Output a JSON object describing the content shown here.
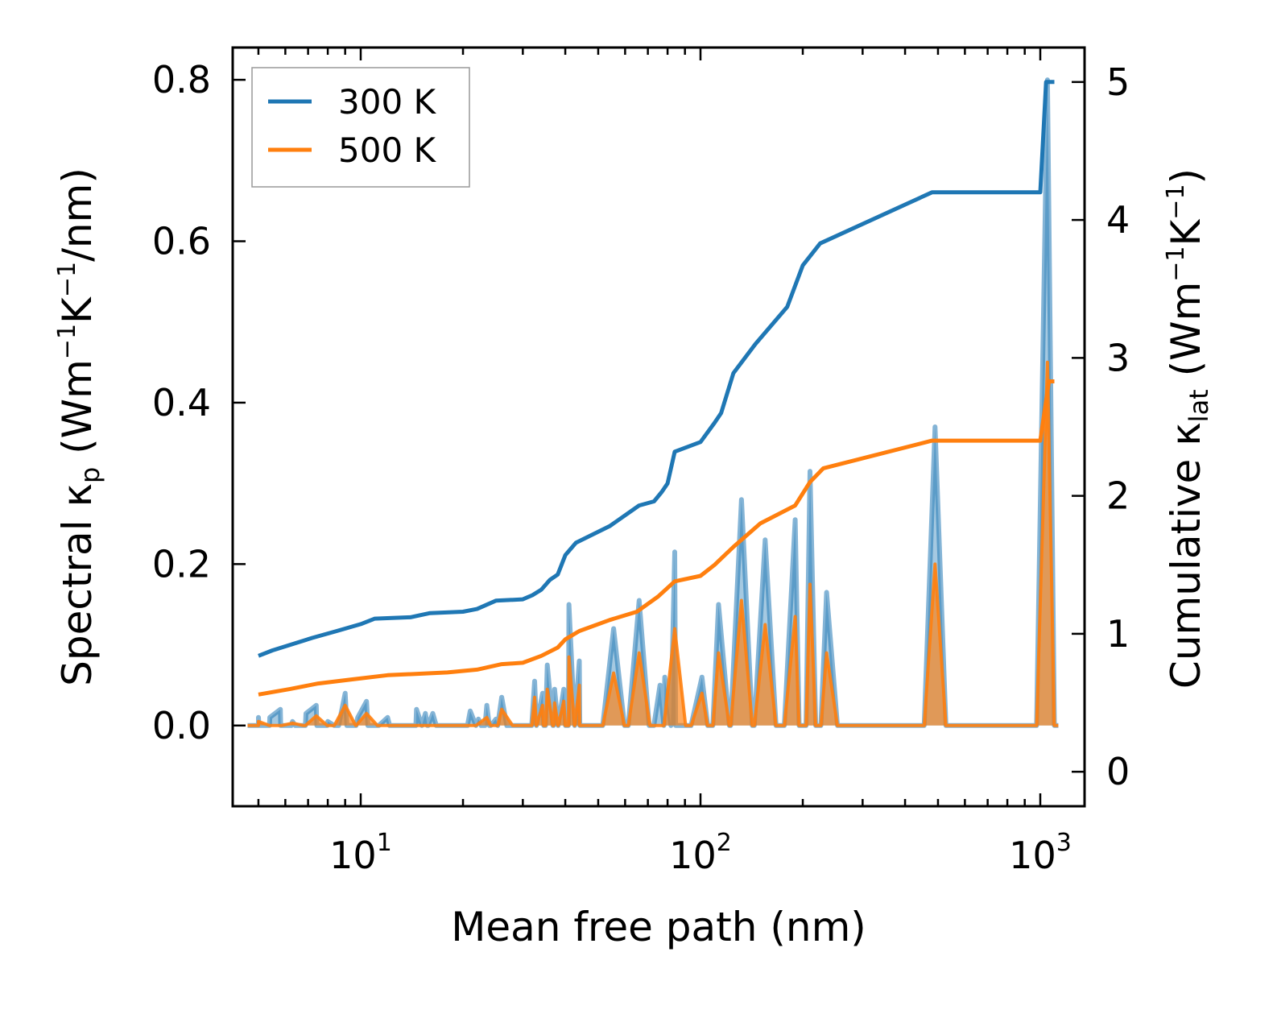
{
  "chart_data": {
    "type": "line",
    "xscale": "log",
    "xlim": [
      4.2,
      1350
    ],
    "ylim_left": [
      -0.1,
      0.84
    ],
    "ylim_right": [
      -0.25,
      5.25
    ],
    "xlabel": "Mean free path (nm)",
    "ylabel_left": {
      "prefix": "Spectral κ",
      "sub": "p",
      "units": " (Wm",
      "sup1": "−1",
      "mid": "K",
      "sup2": "−1",
      "tail": "/nm)"
    },
    "ylabel_right": {
      "prefix": "Cumulative κ",
      "sub": "lat",
      "units": " (Wm",
      "sup1": "−1",
      "mid": "K",
      "sup2": "−1",
      "tail": ")"
    },
    "x_ticks": [
      {
        "value": 10,
        "base": "10",
        "exp": "1"
      },
      {
        "value": 100,
        "base": "10",
        "exp": "2"
      },
      {
        "value": 1000,
        "base": "10",
        "exp": "3"
      }
    ],
    "y_ticks_left": [
      {
        "value": 0.0,
        "label": "0.0"
      },
      {
        "value": 0.2,
        "label": "0.2"
      },
      {
        "value": 0.4,
        "label": "0.4"
      },
      {
        "value": 0.6,
        "label": "0.6"
      },
      {
        "value": 0.8,
        "label": "0.8"
      }
    ],
    "y_ticks_right": [
      {
        "value": 0,
        "label": "0"
      },
      {
        "value": 1,
        "label": "1"
      },
      {
        "value": 2,
        "label": "2"
      },
      {
        "value": 3,
        "label": "3"
      },
      {
        "value": 4,
        "label": "4"
      },
      {
        "value": 5,
        "label": "5"
      }
    ],
    "legend": {
      "position": "top-left",
      "entries": [
        "300 K",
        "500 K"
      ]
    },
    "series": [
      {
        "name": "300 K",
        "color": "#1f77b4",
        "spectral": [
          [
            5.0,
            0.01
          ],
          [
            5.4,
            0.01
          ],
          [
            5.8,
            0.02
          ],
          [
            6.3,
            0.005
          ],
          [
            6.9,
            0.015
          ],
          [
            7.4,
            0.025
          ],
          [
            8.0,
            0.005
          ],
          [
            9.0,
            0.04
          ],
          [
            9.8,
            0.01
          ],
          [
            10.4,
            0.03
          ],
          [
            11.3,
            0.0
          ],
          [
            12.0,
            0.01
          ],
          [
            13.5,
            0.0
          ],
          [
            14.6,
            0.02
          ],
          [
            15.5,
            0.015
          ],
          [
            16.3,
            0.015
          ],
          [
            17.0,
            0.0
          ],
          [
            21.0,
            0.018
          ],
          [
            22.2,
            0.008
          ],
          [
            23.5,
            0.025
          ],
          [
            25.0,
            0.008
          ],
          [
            26.0,
            0.035
          ],
          [
            32.5,
            0.055
          ],
          [
            34.3,
            0.04
          ],
          [
            35.4,
            0.075
          ],
          [
            37.2,
            0.045
          ],
          [
            39.6,
            0.045
          ],
          [
            41.0,
            0.15
          ],
          [
            44.0,
            0.08
          ],
          [
            55.5,
            0.12
          ],
          [
            66.0,
            0.155
          ],
          [
            76.0,
            0.05
          ],
          [
            78.5,
            0.06
          ],
          [
            84.0,
            0.215
          ],
          [
            101.0,
            0.06
          ],
          [
            113.0,
            0.15
          ],
          [
            132.0,
            0.28
          ],
          [
            155.0,
            0.23
          ],
          [
            190.0,
            0.255
          ],
          [
            210.0,
            0.315
          ],
          [
            235.0,
            0.165
          ],
          [
            490.0,
            0.37
          ],
          [
            1050.0,
            0.8
          ]
        ],
        "cumulative": [
          [
            5.0,
            0.84
          ],
          [
            5.5,
            0.88
          ],
          [
            6.2,
            0.92
          ],
          [
            7.2,
            0.97
          ],
          [
            8.5,
            1.02
          ],
          [
            10.0,
            1.07
          ],
          [
            11.0,
            1.11
          ],
          [
            14.0,
            1.12
          ],
          [
            16.0,
            1.15
          ],
          [
            20.0,
            1.16
          ],
          [
            22.0,
            1.18
          ],
          [
            25.0,
            1.24
          ],
          [
            30.0,
            1.25
          ],
          [
            32.0,
            1.28
          ],
          [
            34.0,
            1.32
          ],
          [
            36.0,
            1.39
          ],
          [
            38.0,
            1.43
          ],
          [
            40.0,
            1.57
          ],
          [
            43.0,
            1.66
          ],
          [
            54.0,
            1.78
          ],
          [
            66.0,
            1.93
          ],
          [
            73.0,
            1.96
          ],
          [
            77.0,
            2.03
          ],
          [
            80.0,
            2.09
          ],
          [
            84.0,
            2.32
          ],
          [
            100.0,
            2.39
          ],
          [
            110.0,
            2.53
          ],
          [
            115.0,
            2.6
          ],
          [
            125.0,
            2.89
          ],
          [
            145.0,
            3.1
          ],
          [
            180.0,
            3.37
          ],
          [
            200.0,
            3.67
          ],
          [
            225.0,
            3.83
          ],
          [
            480.0,
            4.2
          ],
          [
            1000.0,
            4.2
          ],
          [
            1040.0,
            5.0
          ],
          [
            1100.0,
            5.0
          ]
        ]
      },
      {
        "name": "500 K",
        "color": "#ff7f0e",
        "spectral": [
          [
            5.0,
            0.005
          ],
          [
            6.3,
            0.003
          ],
          [
            7.4,
            0.012
          ],
          [
            9.0,
            0.025
          ],
          [
            10.4,
            0.015
          ],
          [
            23.5,
            0.01
          ],
          [
            26.0,
            0.02
          ],
          [
            32.5,
            0.035
          ],
          [
            34.3,
            0.025
          ],
          [
            35.4,
            0.045
          ],
          [
            37.2,
            0.028
          ],
          [
            39.6,
            0.03
          ],
          [
            41.0,
            0.085
          ],
          [
            44.0,
            0.05
          ],
          [
            55.5,
            0.065
          ],
          [
            66.0,
            0.09
          ],
          [
            84.0,
            0.12
          ],
          [
            101.0,
            0.04
          ],
          [
            113.0,
            0.09
          ],
          [
            132.0,
            0.155
          ],
          [
            155.0,
            0.125
          ],
          [
            190.0,
            0.135
          ],
          [
            210.0,
            0.175
          ],
          [
            235.0,
            0.09
          ],
          [
            490.0,
            0.2
          ],
          [
            1050.0,
            0.45
          ]
        ],
        "cumulative": [
          [
            5.0,
            0.56
          ],
          [
            6.2,
            0.6
          ],
          [
            7.5,
            0.64
          ],
          [
            9.5,
            0.67
          ],
          [
            12.0,
            0.7
          ],
          [
            18.0,
            0.72
          ],
          [
            22.0,
            0.74
          ],
          [
            26.0,
            0.78
          ],
          [
            30.0,
            0.79
          ],
          [
            34.0,
            0.84
          ],
          [
            38.0,
            0.9
          ],
          [
            40.0,
            0.96
          ],
          [
            44.0,
            1.02
          ],
          [
            54.0,
            1.1
          ],
          [
            65.0,
            1.16
          ],
          [
            75.0,
            1.27
          ],
          [
            84.0,
            1.38
          ],
          [
            100.0,
            1.42
          ],
          [
            110.0,
            1.5
          ],
          [
            125.0,
            1.63
          ],
          [
            150.0,
            1.8
          ],
          [
            190.0,
            1.93
          ],
          [
            210.0,
            2.1
          ],
          [
            230.0,
            2.2
          ],
          [
            480.0,
            2.4
          ],
          [
            1000.0,
            2.4
          ],
          [
            1060.0,
            2.83
          ],
          [
            1100.0,
            2.83
          ]
        ]
      }
    ]
  }
}
